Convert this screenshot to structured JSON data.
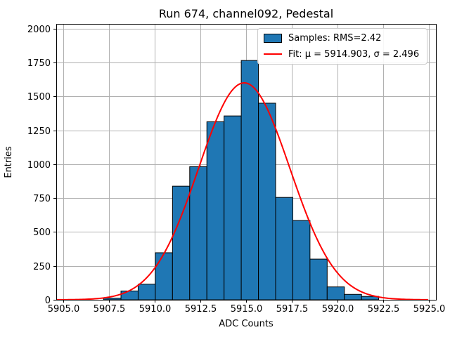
{
  "title": "Run 674, channel092, Pedestal",
  "colors": {
    "background": "#ffffff",
    "bar_fill": "#1f77b4",
    "bar_edge": "#000000",
    "fit_line": "#ff0000",
    "grid": "#b0b0b0",
    "axis": "#000000",
    "text": "#000000",
    "legend_border": "#cccccc"
  },
  "chart_data": {
    "type": "bar",
    "subtype": "histogram",
    "title": "Run 674, channel092, Pedestal",
    "xlabel": "ADC Counts",
    "ylabel": "Entries",
    "xlim": [
      5904.62,
      5925.39
    ],
    "ylim": [
      0,
      2035
    ],
    "grid": true,
    "x_ticks": {
      "values": [
        5905.0,
        5907.5,
        5910.0,
        5912.5,
        5915.0,
        5917.5,
        5920.0,
        5922.5,
        5925.0
      ],
      "labels": [
        "5905.0",
        "5907.5",
        "5910.0",
        "5912.5",
        "5915.0",
        "5917.5",
        "5920.0",
        "5922.5",
        "5925.0"
      ]
    },
    "y_ticks": {
      "values": [
        0,
        250,
        500,
        750,
        1000,
        1250,
        1500,
        1750,
        2000
      ],
      "labels": [
        "0",
        "250",
        "500",
        "750",
        "1000",
        "1250",
        "1500",
        "1750",
        "2000"
      ]
    },
    "bin_edges": [
      5907.21,
      5908.16,
      5909.1,
      5910.04,
      5910.98,
      5911.92,
      5912.86,
      5913.8,
      5914.74,
      5915.68,
      5916.62,
      5917.56,
      5918.5,
      5919.44,
      5920.38,
      5921.32,
      5922.26
    ],
    "counts": [
      12,
      65,
      115,
      347,
      838,
      982,
      1313,
      1356,
      1765,
      1450,
      755,
      585,
      300,
      95,
      40,
      25
    ],
    "fit": {
      "mu": 5914.903,
      "sigma": 2.496,
      "amplitude": 1600,
      "x_range": [
        5904.65,
        5925.0
      ]
    },
    "legend": {
      "position": "upper right",
      "entries": [
        {
          "swatch": "patch",
          "label": "Samples: RMS=2.42"
        },
        {
          "swatch": "line",
          "label": "Fit: μ = 5914.903, σ = 2.496"
        }
      ]
    }
  }
}
